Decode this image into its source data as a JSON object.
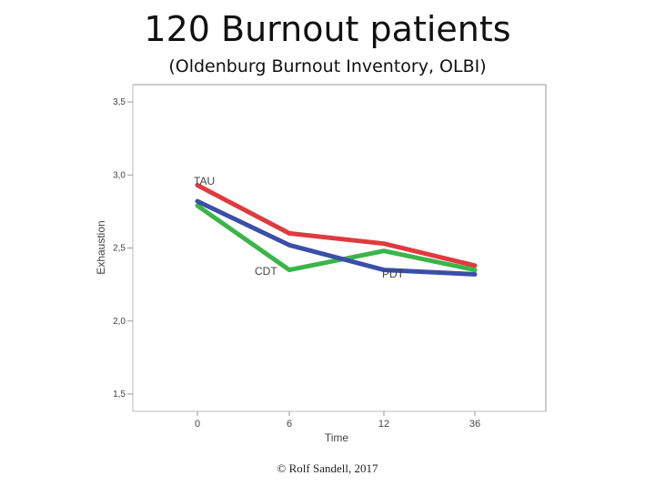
{
  "title": "120 Burnout patients",
  "subtitle": "(Oldenburg Burnout Inventory, OLBI)",
  "credit": "© Rolf Sandell, 2017",
  "colors": {
    "TAU": "#e03a3e",
    "CDT": "#3ab54a",
    "PDT": "#3a4fa8"
  },
  "chart_data": {
    "type": "line",
    "xlabel": "Time",
    "ylabel": "Exhaustion",
    "x_ticks": [
      "0",
      "6",
      "12",
      "36"
    ],
    "y_ticks": [
      "3,5",
      "3,0",
      "2,5",
      "2,0",
      "1,5"
    ],
    "y_tick_values": [
      3.5,
      3.0,
      2.5,
      2.0,
      1.5
    ],
    "ylim": [
      1.5,
      3.5
    ],
    "grid": false,
    "series": [
      {
        "name": "TAU",
        "color": "#e03a3e",
        "values": [
          2.93,
          2.6,
          2.53,
          2.38
        ]
      },
      {
        "name": "CDT",
        "color": "#3ab54a",
        "values": [
          2.79,
          2.35,
          2.48,
          2.35
        ]
      },
      {
        "name": "PDT",
        "color": "#3a4fa8",
        "values": [
          2.82,
          2.52,
          2.35,
          2.32
        ]
      }
    ]
  }
}
